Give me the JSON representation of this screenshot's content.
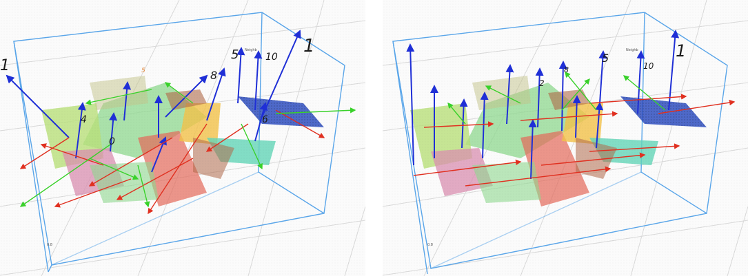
{
  "panels": [
    {
      "id": "left",
      "labels": [
        "1",
        "5",
        "10",
        "1",
        "8",
        "4",
        "6",
        "5",
        "0"
      ],
      "tiny": [
        "Neighb",
        "0.8"
      ]
    },
    {
      "id": "right",
      "labels": [
        "1",
        "5",
        "10",
        "8",
        "2"
      ],
      "tiny": [
        "Neighb",
        "0.8"
      ]
    }
  ],
  "colors": {
    "bbox": "#5aa6ea",
    "grid": "#d9d9d9",
    "normal": "#1f2fd6",
    "axis_x": "#e03020",
    "axis_y": "#39d12a",
    "planes": [
      "#2f4fbf",
      "#8fd88f",
      "#e46a5a",
      "#f2c24a",
      "#64d6b8",
      "#b06a4a",
      "#d98fb0",
      "#b9e07a"
    ]
  }
}
